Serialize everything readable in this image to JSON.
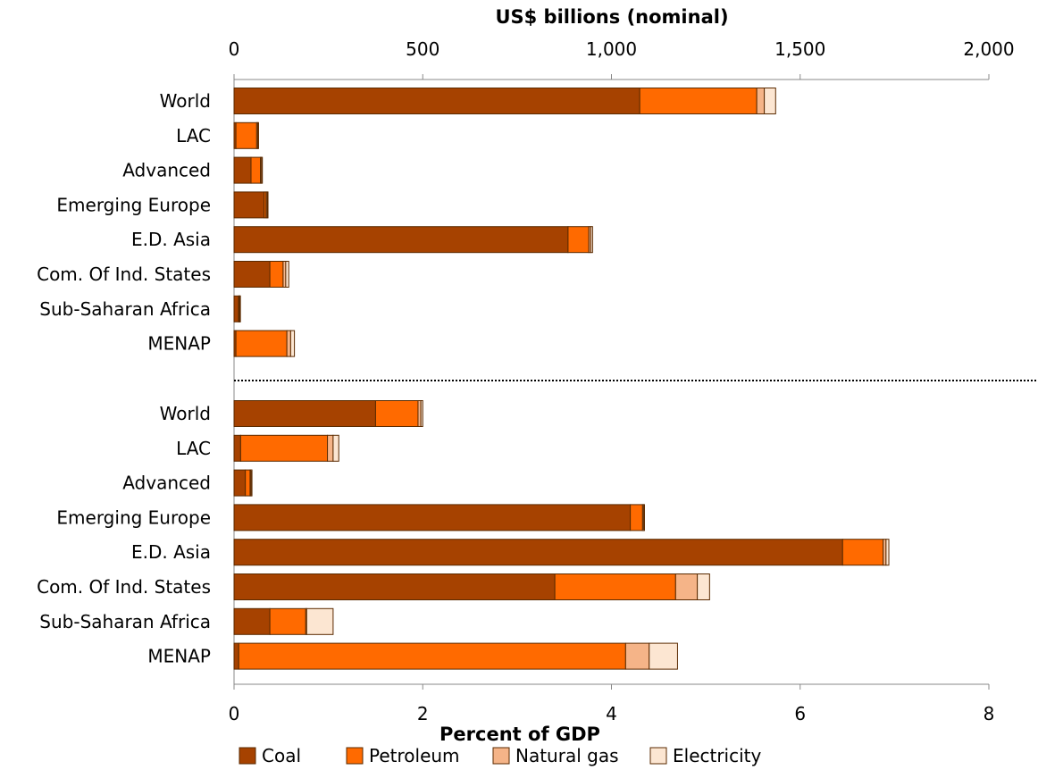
{
  "chart_data": {
    "type": "bar",
    "orientation": "horizontal",
    "stacked": true,
    "legend_position": "bottom",
    "grid": false,
    "colors": {
      "Coal": "#A64200",
      "Petroleum": "#FF6A00",
      "Natural gas": "#F5B488",
      "Electricity": "#FCE6D2",
      "stroke": "#5a2a00"
    },
    "top_axis": {
      "title": "US$ billions (nominal)",
      "range": [
        0,
        2000
      ],
      "ticks": [
        "0",
        "500",
        "1,000",
        "1,500",
        "2,000"
      ]
    },
    "bottom_axis": {
      "title": "Percent of GDP",
      "range": [
        0,
        8
      ],
      "ticks": [
        "0",
        "2",
        "4",
        "6",
        "8"
      ]
    },
    "series_names": [
      "Coal",
      "Petroleum",
      "Natural gas",
      "Electricity"
    ],
    "panels": [
      {
        "units": "US$ billions (nominal)",
        "categories": [
          "World",
          "LAC",
          "Advanced",
          "Emerging Europe",
          "E.D. Asia",
          "Com. Of Ind. States",
          "Sub-Saharan Africa",
          "MENAP"
        ],
        "series": [
          {
            "name": "Coal",
            "values": [
              1075,
              5,
              45,
              80,
              885,
              95,
              12,
              5
            ]
          },
          {
            "name": "Petroleum",
            "values": [
              310,
              55,
              25,
              5,
              55,
              35,
              2,
              135
            ]
          },
          {
            "name": "Natural gas",
            "values": [
              20,
              3,
              3,
              3,
              5,
              7,
              1,
              10
            ]
          },
          {
            "name": "Electricity",
            "values": [
              30,
              2,
              2,
              2,
              5,
              8,
              1,
              10
            ]
          }
        ]
      },
      {
        "units": "Percent of GDP",
        "categories": [
          "World",
          "LAC",
          "Advanced",
          "Emerging Europe",
          "E.D. Asia",
          "Com. Of Ind. States",
          "Sub-Saharan Africa",
          "MENAP"
        ],
        "series": [
          {
            "name": "Coal",
            "values": [
              1.5,
              0.07,
              0.12,
              4.2,
              6.45,
              3.4,
              0.38,
              0.05
            ]
          },
          {
            "name": "Petroleum",
            "values": [
              0.45,
              0.92,
              0.05,
              0.13,
              0.43,
              1.28,
              0.38,
              4.1
            ]
          },
          {
            "name": "Natural gas",
            "values": [
              0.03,
              0.06,
              0.01,
              0.01,
              0.03,
              0.23,
              0.01,
              0.25
            ]
          },
          {
            "name": "Electricity",
            "values": [
              0.02,
              0.06,
              0.01,
              0.01,
              0.03,
              0.13,
              0.28,
              0.3
            ]
          }
        ]
      }
    ]
  }
}
